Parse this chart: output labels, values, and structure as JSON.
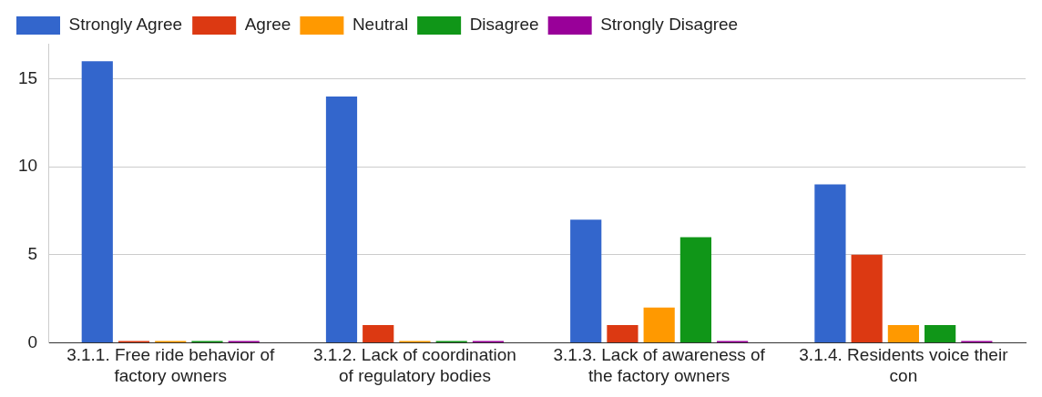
{
  "chart_data": {
    "type": "bar",
    "categories": [
      "3.1.1. Free ride behavior of factory owners",
      "3.1.2. Lack of coordination of regulatory bodies",
      "3.1.3. Lack of awareness of the factory owners",
      "3.1.4. Residents voice their con"
    ],
    "series": [
      {
        "name": "Strongly Agree",
        "color": "#3366cc",
        "values": [
          16,
          14,
          7,
          9
        ]
      },
      {
        "name": "Agree",
        "color": "#dc3912",
        "values": [
          0,
          1,
          1,
          5
        ]
      },
      {
        "name": "Neutral",
        "color": "#ff9900",
        "values": [
          0,
          0,
          2,
          1
        ]
      },
      {
        "name": "Disagree",
        "color": "#109618",
        "values": [
          0,
          0,
          6,
          1
        ]
      },
      {
        "name": "Strongly Disagree",
        "color": "#990099",
        "values": [
          0,
          0,
          0,
          0
        ]
      }
    ],
    "ylim": [
      0,
      17
    ],
    "yticks": [
      0,
      5,
      10,
      15
    ],
    "grid": "y",
    "legend": "top left"
  }
}
